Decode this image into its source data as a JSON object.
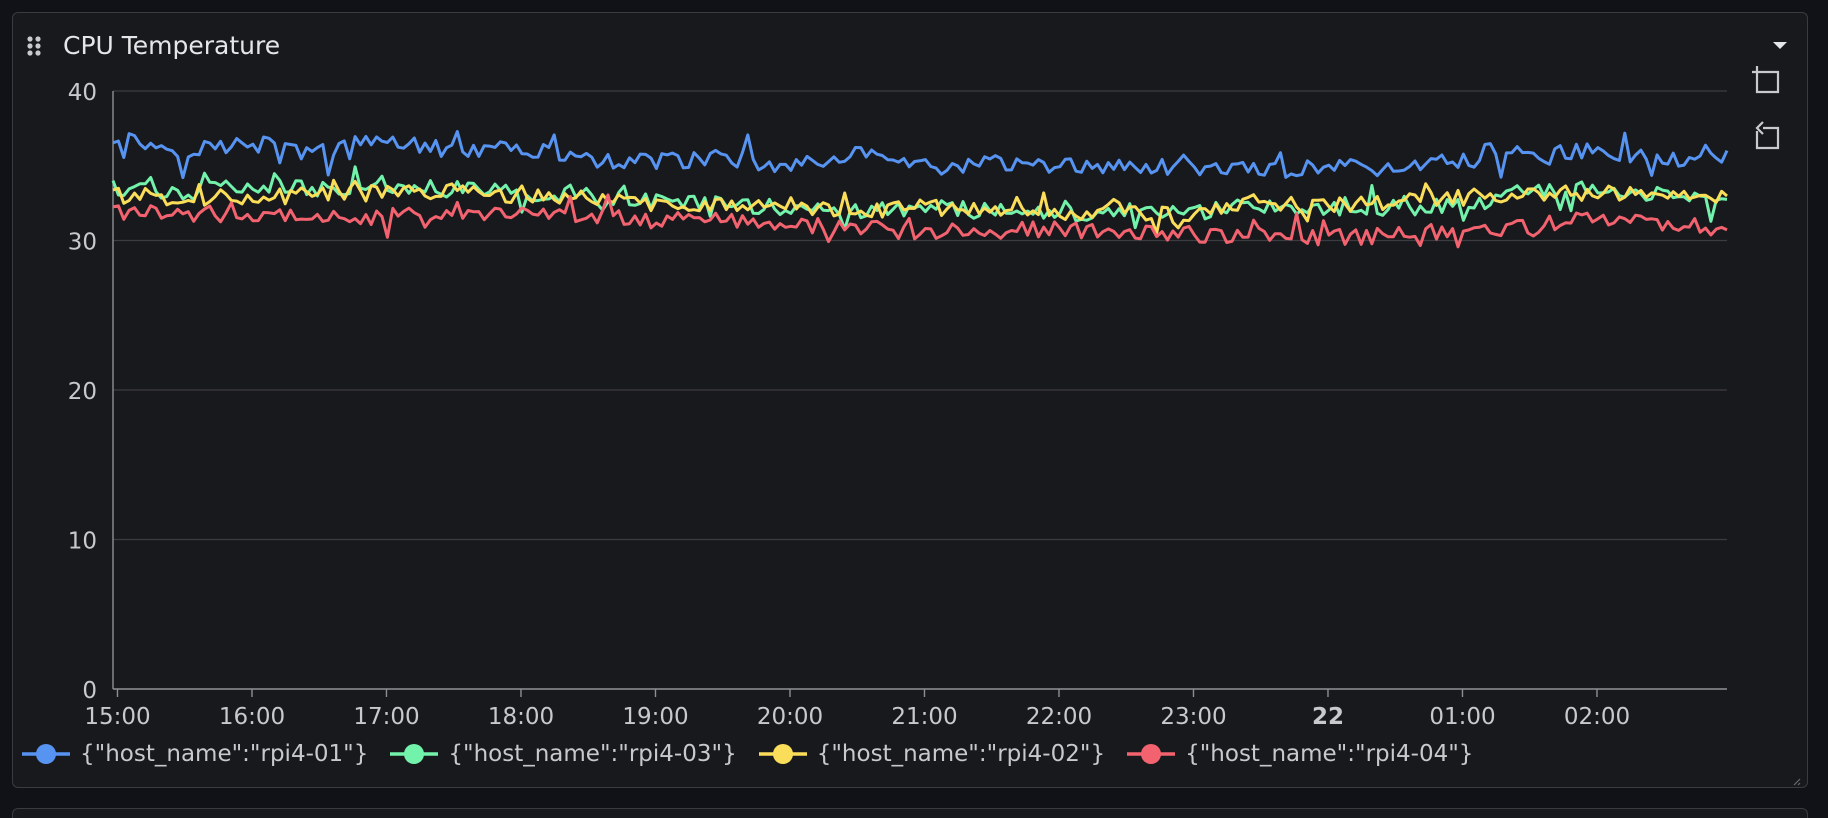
{
  "panel": {
    "title": "CPU Temperature"
  },
  "toolbar": {
    "zoom_icon": "zoom-in-icon",
    "reset_icon": "zoom-reset-icon",
    "menu_icon": "chevron-down-icon"
  },
  "legend": {
    "placement": "bottom-left"
  },
  "chart_data": {
    "type": "line",
    "title": "CPU Temperature",
    "xlabel": "",
    "ylabel": "",
    "ylim": [
      0,
      40
    ],
    "yticks": [
      "0",
      "10",
      "20",
      "30",
      "40"
    ],
    "xticks": [
      "15:00",
      "16:00",
      "17:00",
      "18:00",
      "19:00",
      "20:00",
      "21:00",
      "22:00",
      "23:00",
      "22",
      "01:00",
      "02:00"
    ],
    "xtick_emphasis": "22",
    "xlim": [
      "2021-03-21 14:58",
      "2021-03-22 02:58"
    ],
    "grid": true,
    "x": [
      "14:58",
      "15:30",
      "16:00",
      "16:30",
      "17:00",
      "17:30",
      "18:00",
      "18:30",
      "19:00",
      "19:30",
      "20:00",
      "20:30",
      "21:00",
      "21:30",
      "22:00",
      "22:30",
      "23:00",
      "23:30",
      "00:00",
      "00:30",
      "01:00",
      "01:30",
      "02:00",
      "02:30",
      "02:58"
    ],
    "series": [
      {
        "name": "{\"host_name\":\"rpi4-01\"}",
        "color": "#5794f2",
        "values": [
          37.0,
          36.0,
          36.5,
          35.8,
          36.8,
          36.0,
          36.2,
          35.4,
          35.2,
          35.6,
          35.0,
          35.8,
          34.8,
          35.2,
          34.9,
          35.0,
          34.8,
          34.6,
          34.9,
          35.0,
          35.3,
          35.8,
          36.0,
          35.4,
          35.8
        ]
      },
      {
        "name": "{\"host_name\":\"rpi4-03\"}",
        "color": "#73f2ab",
        "values": [
          33.5,
          33.2,
          33.6,
          33.4,
          33.8,
          33.5,
          33.2,
          33.0,
          32.6,
          32.5,
          32.2,
          32.0,
          32.2,
          32.0,
          31.6,
          31.8,
          31.9,
          32.3,
          32.0,
          32.2,
          32.3,
          33.2,
          33.5,
          33.1,
          32.6
        ]
      },
      {
        "name": "{\"host_name\":\"rpi4-02\"}",
        "color": "#fade5a",
        "values": [
          33.0,
          32.9,
          33.0,
          33.0,
          33.2,
          33.3,
          33.0,
          32.8,
          32.5,
          32.4,
          32.4,
          31.8,
          32.2,
          32.3,
          31.8,
          32.0,
          31.7,
          32.6,
          32.3,
          32.6,
          32.8,
          32.9,
          33.3,
          32.8,
          32.9
        ]
      },
      {
        "name": "{\"host_name\":\"rpi4-04\"}",
        "color": "#f2636f",
        "values": [
          32.0,
          31.8,
          31.8,
          31.6,
          31.6,
          31.6,
          31.8,
          31.6,
          31.3,
          31.4,
          31.2,
          30.8,
          30.6,
          30.6,
          30.8,
          30.5,
          30.4,
          30.4,
          30.2,
          30.3,
          30.4,
          31.0,
          31.4,
          31.2,
          30.8
        ]
      }
    ]
  }
}
